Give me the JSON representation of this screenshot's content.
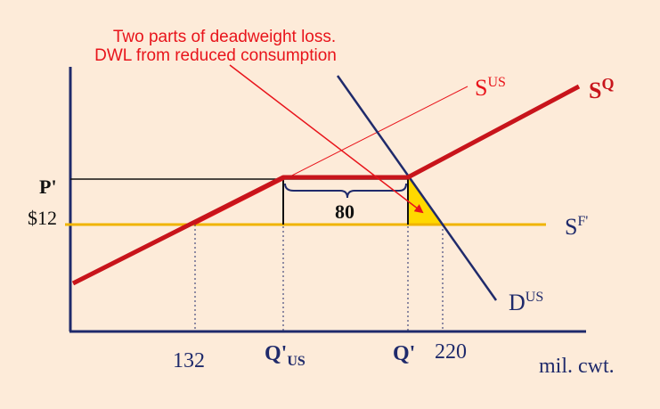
{
  "annotation": {
    "line1": "Two parts of deadweight loss.",
    "line2": "DWL from reduced consumption",
    "color": "#e8141b"
  },
  "curves": {
    "s_us": {
      "main": "S",
      "sup": "US"
    },
    "s_q": {
      "main": "S",
      "sup": "Q"
    },
    "s_f": {
      "main": "S",
      "sup": "F'"
    },
    "d_us": {
      "main": "D",
      "sup": "US"
    }
  },
  "y_labels": {
    "p_prime": "P'",
    "twelve": "$12"
  },
  "x_labels": {
    "q132": "132",
    "q_us_main": "Q'",
    "q_us_sub": "US",
    "q_prime": "Q'",
    "q220": "220",
    "unit": "mil. cwt."
  },
  "brace_label": "80",
  "colors": {
    "supply_quota": "#c8141b",
    "demand": "#1f2a6b",
    "foreign_supply": "#f0b400",
    "dwl_fill": "#ffd800",
    "axis": "#1f2a6b",
    "background": "#fdebd9"
  }
}
